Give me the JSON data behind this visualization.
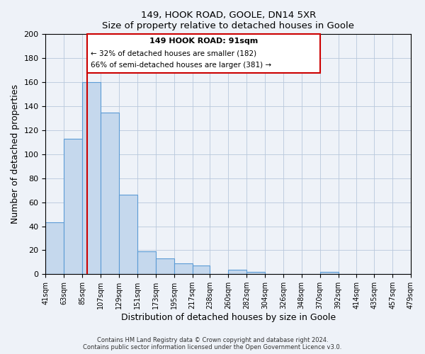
{
  "title": "149, HOOK ROAD, GOOLE, DN14 5XR",
  "subtitle": "Size of property relative to detached houses in Goole",
  "xlabel": "Distribution of detached houses by size in Goole",
  "ylabel": "Number of detached properties",
  "bar_left_edges": [
    41,
    63,
    85,
    107,
    129,
    151,
    173,
    195,
    217,
    238,
    260,
    282,
    304,
    326,
    348,
    370,
    392,
    414,
    435,
    457
  ],
  "bar_widths": [
    22,
    22,
    22,
    22,
    22,
    22,
    22,
    22,
    21,
    22,
    22,
    22,
    22,
    22,
    22,
    22,
    22,
    21,
    22,
    22
  ],
  "bar_heights": [
    43,
    113,
    160,
    135,
    66,
    19,
    13,
    9,
    7,
    0,
    4,
    2,
    0,
    0,
    0,
    2,
    0,
    0,
    0,
    0
  ],
  "bar_color": "#c5d8ed",
  "bar_edge_color": "#5b9bd5",
  "xlim_left": 41,
  "xlim_right": 479,
  "ylim_top": 200,
  "yticks": [
    0,
    20,
    40,
    60,
    80,
    100,
    120,
    140,
    160,
    180,
    200
  ],
  "xtick_labels": [
    "41sqm",
    "63sqm",
    "85sqm",
    "107sqm",
    "129sqm",
    "151sqm",
    "173sqm",
    "195sqm",
    "217sqm",
    "238sqm",
    "260sqm",
    "282sqm",
    "304sqm",
    "326sqm",
    "348sqm",
    "370sqm",
    "392sqm",
    "414sqm",
    "435sqm",
    "457sqm",
    "479sqm"
  ],
  "xtick_positions": [
    41,
    63,
    85,
    107,
    129,
    151,
    173,
    195,
    217,
    238,
    260,
    282,
    304,
    326,
    348,
    370,
    392,
    414,
    435,
    457,
    479
  ],
  "property_size": 91,
  "red_line_color": "#cc0000",
  "annotation_box_title": "149 HOOK ROAD: 91sqm",
  "annotation_line1": "← 32% of detached houses are smaller (182)",
  "annotation_line2": "66% of semi-detached houses are larger (381) →",
  "footer1": "Contains HM Land Registry data © Crown copyright and database right 2024.",
  "footer2": "Contains public sector information licensed under the Open Government Licence v3.0.",
  "background_color": "#eef2f8",
  "plot_background": "#eef2f8",
  "grid_color": "#b8c8dc"
}
